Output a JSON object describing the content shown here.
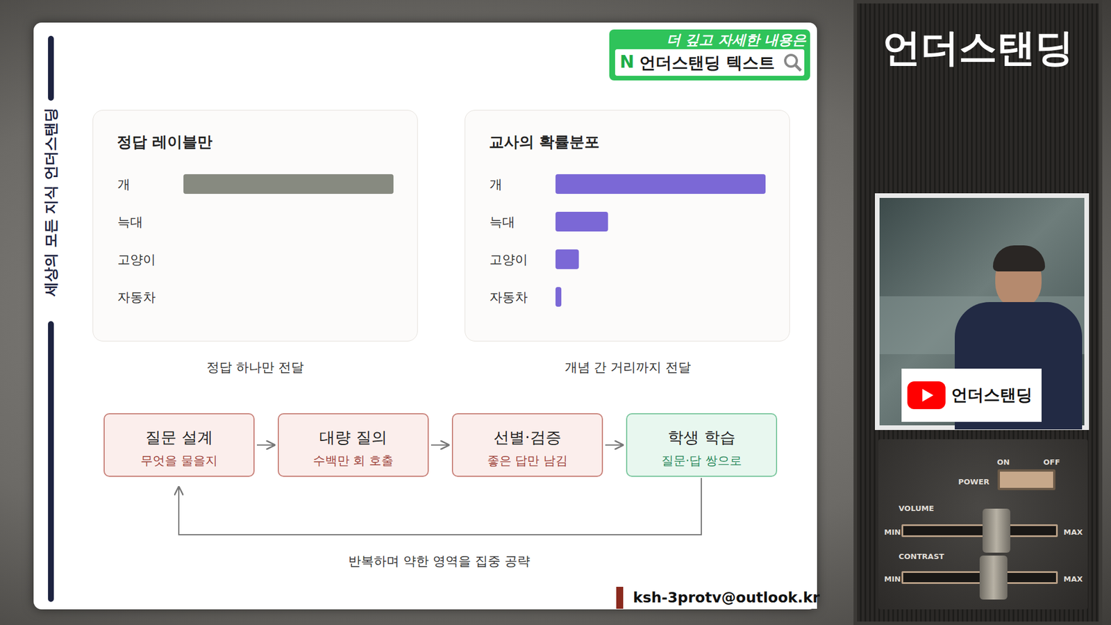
{
  "frame": {
    "side_title": "세상의 모든 지식 언더스탠딩",
    "badge_top": "더 깊고 자세한 내용은",
    "badge_logo": "N",
    "badge_text": "언더스탠딩 텍스트",
    "email": "ksh-3protv@outlook.kr"
  },
  "chart_data": [
    {
      "type": "bar",
      "orientation": "horizontal",
      "title": "정답 레이블만",
      "caption": "정답 하나만 전달",
      "categories": [
        "개",
        "늑대",
        "고양이",
        "자동차"
      ],
      "values": [
        1,
        0,
        0,
        0
      ],
      "xlim": [
        0,
        1
      ],
      "color": "#878a80",
      "tick_labels": "y"
    },
    {
      "type": "bar",
      "orientation": "horizontal",
      "title": "교사의 확률분포",
      "caption": "개념 간 거리까지 전달",
      "categories": [
        "개",
        "늑대",
        "고양이",
        "자동차"
      ],
      "values": [
        0.72,
        0.18,
        0.08,
        0.02
      ],
      "xlim": [
        0,
        0.72
      ],
      "color": "#7b68d6",
      "tick_labels": "y"
    }
  ],
  "flow": {
    "nodes": [
      {
        "title": "질문 설계",
        "subtitle": "무엇을 물을지"
      },
      {
        "title": "대량 질의",
        "subtitle": "수백만 회 호출"
      },
      {
        "title": "선별·검증",
        "subtitle": "좋은 답만 남김"
      },
      {
        "title": "학생 학습",
        "subtitle": "질문·답 쌍으로"
      }
    ],
    "loop_label": "반복하며 약한 영역을 집중 공략"
  },
  "side_panel": {
    "channel_title": "언더스탠딩",
    "video_badge": "언더스탠딩",
    "controls": {
      "power": "POWER",
      "on": "ON",
      "off": "OFF",
      "volume": "VOLUME",
      "contrast": "CONTRAST",
      "min": "MIN",
      "max": "MAX"
    }
  }
}
